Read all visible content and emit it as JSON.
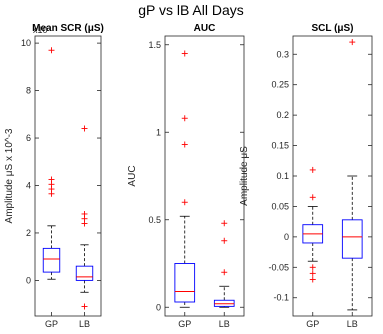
{
  "figure_title": "gP vs lB All Days",
  "colors": {
    "box": "#0000ff",
    "median": "#ff0000",
    "outlier": "#ff0000",
    "whisker": "#000000",
    "axis": "#262626"
  },
  "chart_data": [
    {
      "type": "box",
      "title": "Mean SCR (μS)",
      "ylabel": "Amplitude μS x 10^-3",
      "ylim": [
        -1.5,
        10.3
      ],
      "yticks": [
        0,
        2,
        4,
        6,
        8,
        10
      ],
      "ytick_labels": [
        "0",
        "2",
        "4",
        "6",
        "8",
        "10"
      ],
      "exponent_label": "x10",
      "categories": [
        "GP",
        "LB"
      ],
      "boxes": [
        {
          "category": "GP",
          "lower_whisker": 0.05,
          "q1": 0.35,
          "median": 0.9,
          "q3": 1.35,
          "upper_whisker": 2.3,
          "outliers": [
            9.7,
            4.25,
            4.05,
            3.85,
            3.65
          ]
        },
        {
          "category": "LB",
          "lower_whisker": -0.5,
          "q1": 0.0,
          "median": 0.15,
          "q3": 0.6,
          "upper_whisker": 1.5,
          "outliers": [
            6.4,
            2.8,
            2.6,
            2.4,
            -1.1
          ]
        }
      ]
    },
    {
      "type": "box",
      "title": "AUC",
      "ylabel": "AUC",
      "ylim": [
        -0.05,
        1.55
      ],
      "yticks": [
        0,
        0.5,
        1,
        1.5
      ],
      "ytick_labels": [
        "0",
        "0.5",
        "1",
        "1.5"
      ],
      "categories": [
        "GP",
        "LB"
      ],
      "boxes": [
        {
          "category": "GP",
          "lower_whisker": 0.0,
          "q1": 0.03,
          "median": 0.09,
          "q3": 0.25,
          "upper_whisker": 0.52,
          "outliers": [
            1.45,
            1.08,
            0.93,
            0.6
          ]
        },
        {
          "category": "LB",
          "lower_whisker": 0.0,
          "q1": 0.005,
          "median": 0.02,
          "q3": 0.04,
          "upper_whisker": 0.12,
          "outliers": [
            0.48,
            0.38,
            0.2
          ]
        }
      ]
    },
    {
      "type": "box",
      "title": "SCL (μS)",
      "ylabel": "Amplitude μS",
      "ylim": [
        -0.13,
        0.33
      ],
      "yticks": [
        -0.1,
        -0.05,
        0,
        0.05,
        0.1,
        0.15,
        0.2,
        0.25,
        0.3
      ],
      "ytick_labels": [
        "-0.1",
        "-0.05",
        "0",
        "0.05",
        "0.1",
        "0.15",
        "0.2",
        "0.25",
        "0.3"
      ],
      "categories": [
        "GP",
        "LB"
      ],
      "boxes": [
        {
          "category": "GP",
          "lower_whisker": -0.04,
          "q1": -0.01,
          "median": 0.005,
          "q3": 0.02,
          "upper_whisker": 0.05,
          "outliers": [
            0.11,
            0.065,
            -0.05,
            -0.06,
            -0.07
          ]
        },
        {
          "category": "LB",
          "lower_whisker": -0.12,
          "q1": -0.035,
          "median": 0.0,
          "q3": 0.028,
          "upper_whisker": 0.1,
          "outliers": [
            0.32
          ]
        }
      ]
    }
  ]
}
